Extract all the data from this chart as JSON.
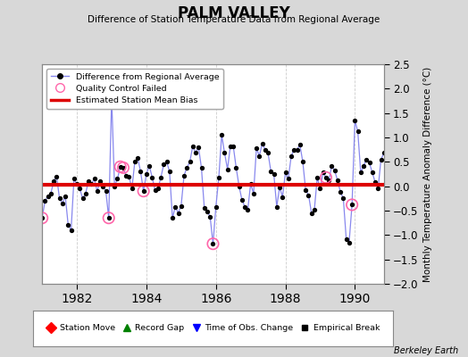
{
  "title": "PALM VALLEY",
  "subtitle": "Difference of Station Temperature Data from Regional Average",
  "ylabel": "Monthly Temperature Anomaly Difference (°C)",
  "credit": "Berkeley Earth",
  "xlim": [
    1981.0,
    1990.83
  ],
  "ylim": [
    -2.0,
    2.5
  ],
  "yticks": [
    -2,
    -1.5,
    -1,
    -0.5,
    0,
    0.5,
    1,
    1.5,
    2,
    2.5
  ],
  "xticks": [
    1982,
    1984,
    1986,
    1988,
    1990
  ],
  "bias": 0.03,
  "background_color": "#d8d8d8",
  "plot_bg_color": "#ffffff",
  "line_color": "#8888ee",
  "dot_color": "#000000",
  "bias_color": "#dd0000",
  "qc_color": "#ff66aa",
  "monthly_data": [
    -0.65,
    -0.3,
    -0.2,
    -0.15,
    0.1,
    0.2,
    -0.25,
    -0.35,
    -0.2,
    -0.8,
    -0.9,
    0.15,
    0.05,
    -0.05,
    -0.25,
    -0.15,
    0.1,
    0.05,
    0.15,
    -0.1,
    0.1,
    0.0,
    -0.1,
    -0.65,
    1.82,
    0.0,
    0.15,
    0.4,
    0.38,
    0.22,
    0.2,
    -0.05,
    0.5,
    0.58,
    0.3,
    -0.1,
    0.25,
    0.42,
    0.18,
    -0.08,
    -0.05,
    0.18,
    0.45,
    0.5,
    0.3,
    -0.65,
    -0.42,
    -0.55,
    -0.4,
    0.22,
    0.38,
    0.5,
    0.82,
    0.68,
    0.8,
    0.38,
    -0.45,
    -0.52,
    -0.62,
    -1.18,
    -0.42,
    0.18,
    1.05,
    0.68,
    0.35,
    0.82,
    0.82,
    0.38,
    0.0,
    -0.28,
    -0.42,
    -0.48,
    0.05,
    -0.15,
    0.78,
    0.62,
    0.88,
    0.75,
    0.68,
    0.3,
    0.25,
    -0.42,
    -0.02,
    -0.22,
    0.28,
    0.15,
    0.62,
    0.75,
    0.75,
    0.85,
    0.5,
    -0.08,
    -0.18,
    -0.55,
    -0.48,
    0.18,
    -0.05,
    0.28,
    0.18,
    0.12,
    0.42,
    0.32,
    0.12,
    -0.12,
    -0.25,
    -1.08,
    -1.15,
    -0.38,
    1.35,
    1.12,
    0.28,
    0.42,
    0.55,
    0.48,
    0.28,
    0.08,
    -0.05,
    0.55,
    0.68,
    0.62
  ],
  "qc_failed_indices": [
    0,
    23,
    24,
    27,
    28,
    35,
    59,
    98,
    107
  ],
  "start_year": 1981,
  "start_month": 1
}
